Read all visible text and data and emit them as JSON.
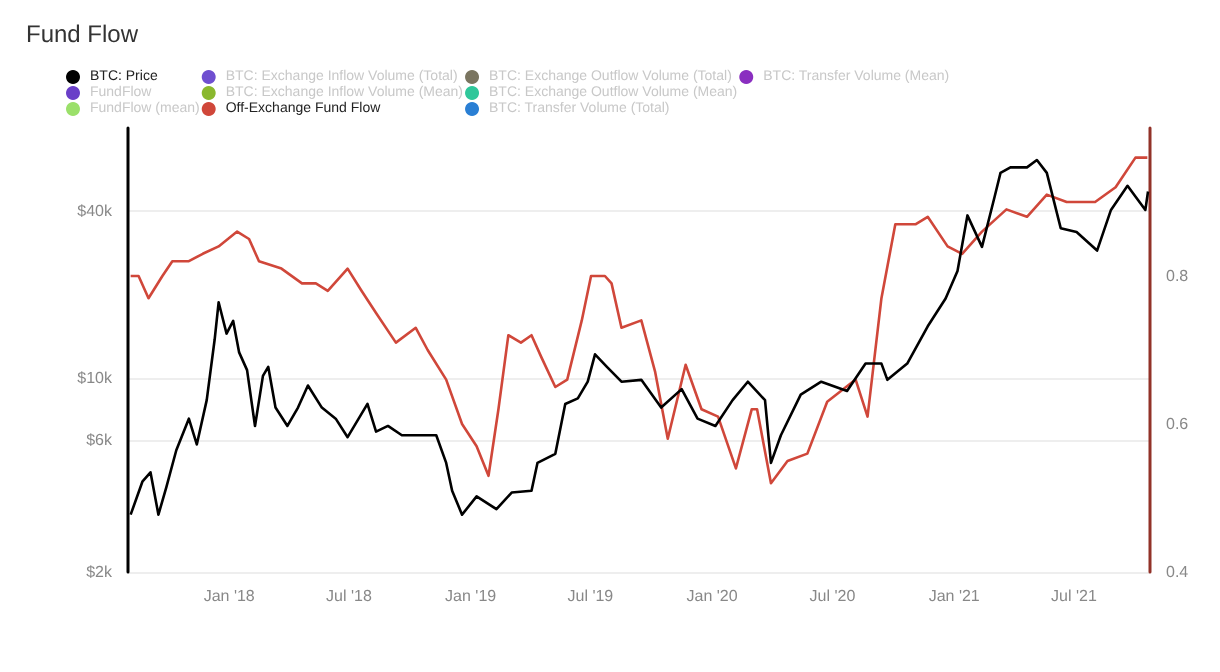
{
  "chart_data": {
    "type": "line",
    "title": "Fund Flow",
    "xlim": [
      "2017-08-01",
      "2021-10-24"
    ],
    "xticks": [
      {
        "value": "2018-01-01",
        "label": "Jan '18"
      },
      {
        "value": "2018-07-01",
        "label": "Jul '18"
      },
      {
        "value": "2019-01-01",
        "label": "Jan '19"
      },
      {
        "value": "2019-07-01",
        "label": "Jul '19"
      },
      {
        "value": "2020-01-01",
        "label": "Jan '20"
      },
      {
        "value": "2020-07-01",
        "label": "Jul '20"
      },
      {
        "value": "2021-01-01",
        "label": "Jan '21"
      },
      {
        "value": "2021-07-01",
        "label": "Jul '21"
      }
    ],
    "log": "y",
    "ylim": [
      2000,
      80000
    ],
    "yticks": [
      {
        "value": 2000,
        "label": "$2k"
      },
      {
        "value": 6000,
        "label": "$6k"
      },
      {
        "value": 10000,
        "label": "$10k"
      },
      {
        "value": 40000,
        "label": "$40k"
      }
    ],
    "y2lim": [
      0.4,
      1.0
    ],
    "y2ticks": [
      0.4,
      0.6,
      0.8
    ],
    "grid": "y",
    "legend": "top",
    "marker": "none",
    "line_style": "solid",
    "series": [
      {
        "name": "BTC: Price",
        "color": "#000000",
        "x": [
          "2017-08-05",
          "2017-08-23",
          "2017-09-04",
          "2017-09-16",
          "2017-09-28",
          "2017-10-13",
          "2017-11-01",
          "2017-11-13",
          "2017-11-28",
          "2017-12-10",
          "2017-12-16",
          "2017-12-28",
          "2018-01-07",
          "2018-01-16",
          "2018-01-28",
          "2018-02-09",
          "2018-02-21",
          "2018-03-01",
          "2018-03-12",
          "2018-03-30",
          "2018-04-15",
          "2018-04-30",
          "2018-05-21",
          "2018-06-11",
          "2018-06-29",
          "2018-07-29",
          "2018-08-11",
          "2018-08-29",
          "2018-09-19",
          "2018-11-10",
          "2018-11-25",
          "2018-12-04",
          "2018-12-19",
          "2019-01-10",
          "2019-02-09",
          "2019-03-04",
          "2019-04-03",
          "2019-04-12",
          "2019-05-09",
          "2019-05-24",
          "2019-06-12",
          "2019-06-27",
          "2019-07-08",
          "2019-07-26",
          "2019-08-17",
          "2019-09-16",
          "2019-10-16",
          "2019-11-16",
          "2019-12-10",
          "2020-01-06",
          "2020-02-01",
          "2020-02-24",
          "2020-03-21",
          "2020-03-30",
          "2020-04-14",
          "2020-05-14",
          "2020-06-14",
          "2020-07-23",
          "2020-08-20",
          "2020-09-13",
          "2020-09-22",
          "2020-10-22",
          "2020-11-22",
          "2020-12-19",
          "2021-01-06",
          "2021-01-21",
          "2021-02-12",
          "2021-03-03",
          "2021-03-12",
          "2021-03-27",
          "2021-04-21",
          "2021-05-06",
          "2021-05-21",
          "2021-06-11",
          "2021-07-05",
          "2021-08-05",
          "2021-08-26",
          "2021-09-20",
          "2021-10-17",
          "2021-10-21"
        ],
        "values": [
          3220,
          4250,
          4580,
          3220,
          4050,
          5500,
          7150,
          5770,
          8340,
          13800,
          18800,
          14500,
          16100,
          12400,
          10700,
          6730,
          10200,
          11000,
          7840,
          6730,
          7840,
          9420,
          7840,
          7150,
          6130,
          8080,
          6420,
          6730,
          6230,
          6230,
          4950,
          3930,
          3220,
          3750,
          3370,
          3870,
          3930,
          4950,
          5340,
          8080,
          8460,
          9720,
          12200,
          11000,
          9720,
          9870,
          7840,
          9140,
          7150,
          6730,
          8340,
          9720,
          8340,
          4950,
          6230,
          8730,
          9720,
          9000,
          11300,
          11300,
          9870,
          11300,
          15400,
          19400,
          24400,
          38700,
          29800,
          45100,
          55100,
          57700,
          57700,
          61300,
          55100,
          34800,
          33700,
          28900,
          40500,
          49500,
          40500,
          47200
        ]
      },
      {
        "name": "FundFlow",
        "color": "#6a3fc8"
      },
      {
        "name": "FundFlow (mean)",
        "color": "#9be06a"
      },
      {
        "name": "BTC: Exchange Inflow Volume (Total)",
        "color": "#6f4fd0"
      },
      {
        "name": "BTC: Exchange Inflow Volume (Mean)",
        "color": "#8ab82e"
      },
      {
        "name": "Off-Exchange Fund Flow",
        "color": "#d0473a",
        "axis": "y2",
        "x": [
          "2017-08-05",
          "2017-08-17",
          "2017-09-01",
          "2017-09-22",
          "2017-10-07",
          "2017-11-01",
          "2017-11-22",
          "2017-12-16",
          "2018-01-13",
          "2018-01-31",
          "2018-02-15",
          "2018-03-21",
          "2018-04-21",
          "2018-05-12",
          "2018-05-30",
          "2018-06-29",
          "2018-07-20",
          "2018-08-11",
          "2018-09-10",
          "2018-10-10",
          "2018-10-28",
          "2018-11-25",
          "2018-12-19",
          "2019-01-10",
          "2019-01-28",
          "2019-02-12",
          "2019-02-27",
          "2019-03-18",
          "2019-04-03",
          "2019-04-18",
          "2019-05-09",
          "2019-05-27",
          "2019-06-18",
          "2019-07-02",
          "2019-07-23",
          "2019-08-02",
          "2019-08-17",
          "2019-09-16",
          "2019-10-07",
          "2019-10-26",
          "2019-11-22",
          "2019-12-16",
          "2020-01-10",
          "2020-02-06",
          "2020-03-01",
          "2020-03-09",
          "2020-03-30",
          "2020-04-24",
          "2020-05-24",
          "2020-06-23",
          "2020-08-05",
          "2020-08-23",
          "2020-09-13",
          "2020-10-04",
          "2020-11-04",
          "2020-11-22",
          "2020-12-22",
          "2021-01-13",
          "2021-02-12",
          "2021-03-21",
          "2021-04-21",
          "2021-05-21",
          "2021-06-20",
          "2021-08-02",
          "2021-09-02",
          "2021-10-02",
          "2021-10-20"
        ],
        "values": [
          0.8,
          0.8,
          0.77,
          0.8,
          0.82,
          0.82,
          0.83,
          0.84,
          0.86,
          0.85,
          0.82,
          0.81,
          0.79,
          0.79,
          0.78,
          0.81,
          0.78,
          0.75,
          0.71,
          0.73,
          0.7,
          0.66,
          0.6,
          0.57,
          0.53,
          0.62,
          0.72,
          0.71,
          0.72,
          0.69,
          0.65,
          0.66,
          0.74,
          0.8,
          0.8,
          0.79,
          0.73,
          0.74,
          0.67,
          0.58,
          0.68,
          0.62,
          0.61,
          0.54,
          0.62,
          0.62,
          0.52,
          0.55,
          0.56,
          0.63,
          0.66,
          0.61,
          0.77,
          0.87,
          0.87,
          0.88,
          0.84,
          0.83,
          0.86,
          0.89,
          0.88,
          0.91,
          0.9,
          0.9,
          0.92,
          0.96,
          0.96
        ]
      },
      {
        "name": "BTC: Exchange Outflow Volume (Total)",
        "color": "#7a7560"
      },
      {
        "name": "BTC: Exchange Outflow Volume (Mean)",
        "color": "#2fc79a"
      },
      {
        "name": "BTC: Transfer Volume (Total)",
        "color": "#2a7fd4"
      },
      {
        "name": "BTC: Transfer Volume (Mean)",
        "color": "#8a2fc0"
      }
    ]
  }
}
